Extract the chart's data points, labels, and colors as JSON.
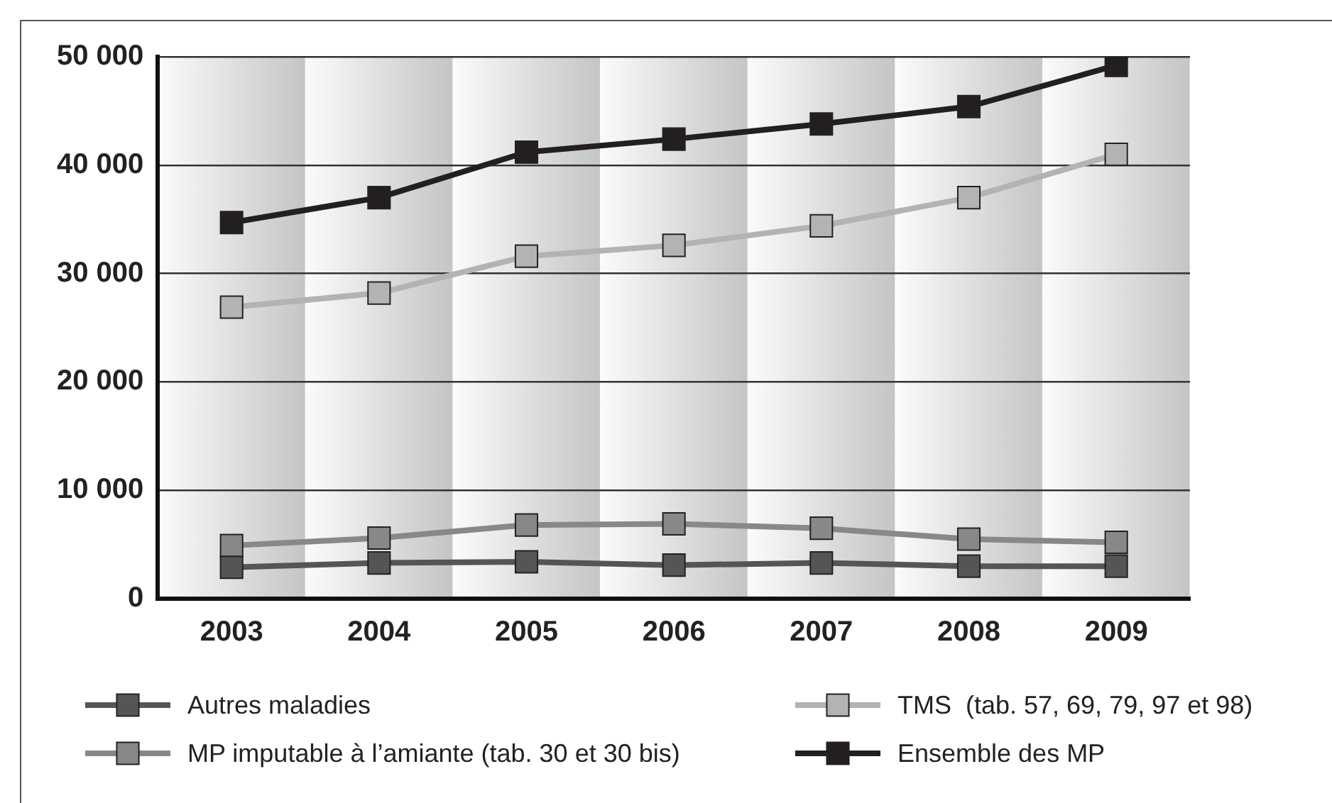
{
  "chart_data": {
    "type": "line",
    "categories": [
      "2003",
      "2004",
      "2005",
      "2006",
      "2007",
      "2008",
      "2009"
    ],
    "series": [
      {
        "name": "Autres maladies",
        "color": "#555555",
        "values": [
          2900,
          3300,
          3400,
          3100,
          3300,
          3000,
          3000
        ]
      },
      {
        "name": "MP imputable à l’amiante (tab. 30 et 30 bis)",
        "color": "#888888",
        "values": [
          4900,
          5600,
          6800,
          6900,
          6500,
          5500,
          5200
        ]
      },
      {
        "name": "TMS  (tab. 57, 69, 79, 97 et 98)",
        "color": "#b3b3b3",
        "values": [
          26900,
          28200,
          31600,
          32600,
          34400,
          37000,
          41000
        ]
      },
      {
        "name": "Ensemble des MP",
        "color": "#231f20",
        "values": [
          34700,
          37000,
          41200,
          42400,
          43800,
          45400,
          49200
        ]
      }
    ],
    "ylim": [
      0,
      50000
    ],
    "yticks": [
      0,
      {
        "value": 10000,
        "label": "10 000"
      },
      {
        "value": 20000,
        "label": "20 000"
      },
      {
        "value": 30000,
        "label": "30 000"
      },
      {
        "value": 40000,
        "label": "40 000"
      },
      {
        "value": 50000,
        "label": "50 000"
      }
    ],
    "grid": "y",
    "legend": "bottom",
    "marker": "square",
    "line_style": "solid"
  }
}
